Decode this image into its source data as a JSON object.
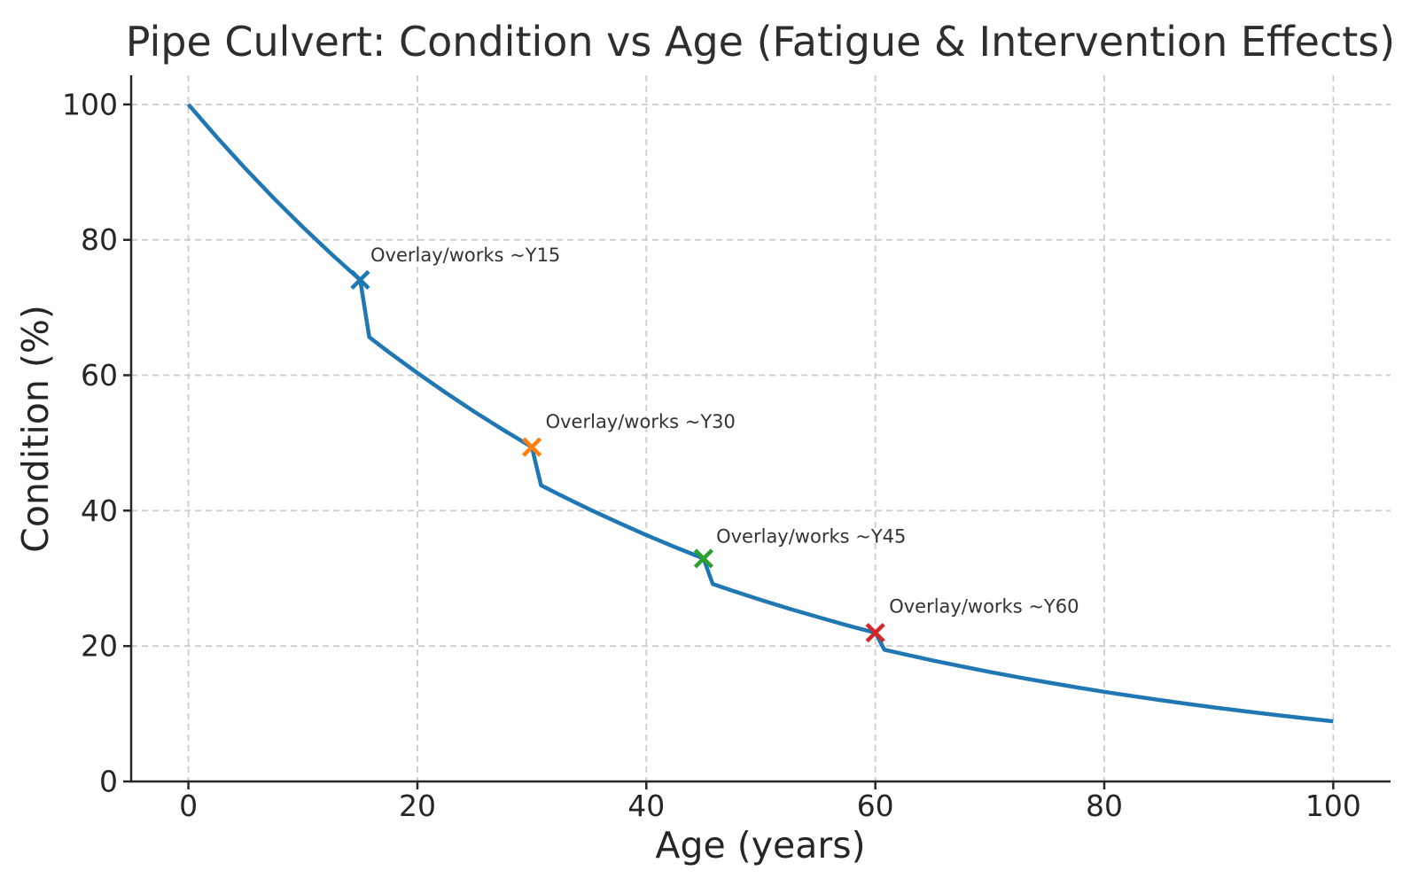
{
  "chart_data": {
    "type": "line",
    "title": "Pipe Culvert: Condition vs Age (Fatigue & Intervention Effects)",
    "xlabel": "Age (years)",
    "ylabel": "Condition (%)",
    "xlim": [
      -5,
      105
    ],
    "ylim": [
      0,
      104.3
    ],
    "xticks": [
      0,
      20,
      40,
      60,
      80,
      100
    ],
    "yticks": [
      0,
      20,
      40,
      60,
      80,
      100
    ],
    "grid": true,
    "grid_style": "dashed",
    "legend_position": "none",
    "line_color": "#1f77b4",
    "grid_color": "#cccccc",
    "axis_color": "#262626",
    "text_color": "#262626",
    "annotation_color": "#333333",
    "series": [
      {
        "name": "Condition",
        "points": [
          [
            0,
            100
          ],
          [
            2.5,
            95.12
          ],
          [
            5,
            90.48
          ],
          [
            7.5,
            86.07
          ],
          [
            10,
            81.87
          ],
          [
            12.5,
            77.88
          ],
          [
            15,
            74.08
          ],
          [
            15.8,
            65.61
          ],
          [
            17.5,
            63.42
          ],
          [
            20,
            60.33
          ],
          [
            22.5,
            57.39
          ],
          [
            25,
            54.59
          ],
          [
            27.5,
            51.93
          ],
          [
            30,
            49.39
          ],
          [
            30.8,
            43.74
          ],
          [
            32.5,
            42.28
          ],
          [
            35,
            40.22
          ],
          [
            37.5,
            38.26
          ],
          [
            40,
            36.4
          ],
          [
            42.5,
            34.62
          ],
          [
            45,
            32.93
          ],
          [
            45.8,
            29.17
          ],
          [
            47.5,
            28.19
          ],
          [
            50,
            26.81
          ],
          [
            52.5,
            25.51
          ],
          [
            55,
            24.27
          ],
          [
            57.5,
            23.07
          ],
          [
            60,
            21.96
          ],
          [
            60.8,
            19.45
          ],
          [
            62.5,
            18.8
          ],
          [
            65,
            17.88
          ],
          [
            67.5,
            17.01
          ],
          [
            70,
            16.18
          ],
          [
            72.5,
            15.39
          ],
          [
            75,
            14.64
          ],
          [
            77.5,
            13.93
          ],
          [
            80,
            13.25
          ],
          [
            82.5,
            12.6
          ],
          [
            85,
            11.99
          ],
          [
            87.5,
            11.4
          ],
          [
            90,
            10.85
          ],
          [
            92.5,
            10.32
          ],
          [
            95,
            9.81
          ],
          [
            97.5,
            9.34
          ],
          [
            100,
            8.88
          ]
        ]
      }
    ],
    "interventions": [
      {
        "x": 15,
        "y": 74.08,
        "label": "Overlay/works ~Y15",
        "color": "#1f77b4",
        "label_xy": [
          15.9,
          76.8
        ]
      },
      {
        "x": 30,
        "y": 49.39,
        "label": "Overlay/works ~Y30",
        "color": "#ff7f0e",
        "label_xy": [
          31.2,
          52.2
        ]
      },
      {
        "x": 45,
        "y": 32.93,
        "label": "Overlay/works ~Y45",
        "color": "#2ca02c",
        "label_xy": [
          46.1,
          35.3
        ]
      },
      {
        "x": 60,
        "y": 21.96,
        "label": "Overlay/works ~Y60",
        "color": "#d62728",
        "label_xy": [
          61.2,
          24.9
        ]
      }
    ]
  }
}
